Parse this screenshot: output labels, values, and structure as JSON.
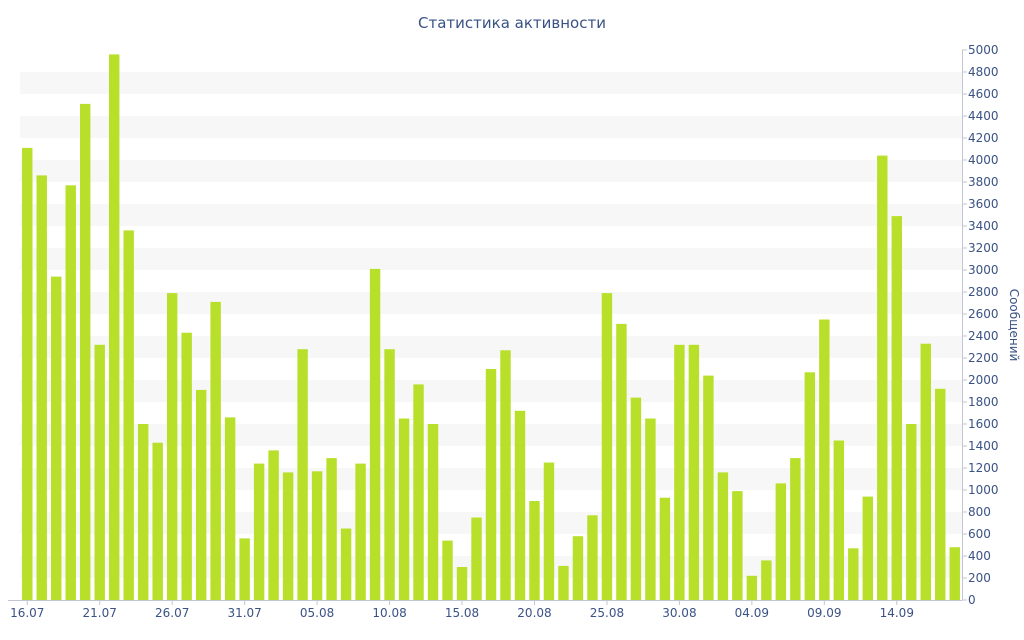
{
  "chart_data": {
    "type": "bar",
    "title": "Статистика активности",
    "ylabel": "Сообщений",
    "xlabel": "",
    "ylim": [
      0,
      5000
    ],
    "y_tick_step": 200,
    "y_axis_side": "right",
    "grid": "alternating horizontal bands",
    "bar_color": "#b8e02a",
    "x_tick_labels": [
      "16.07",
      "21.07",
      "26.07",
      "31.07",
      "05.08",
      "10.08",
      "15.08",
      "20.08",
      "25.08",
      "30.08",
      "04.09",
      "09.09",
      "14.09"
    ],
    "categories": [
      "16.07",
      "17.07",
      "18.07",
      "19.07",
      "20.07",
      "21.07",
      "22.07",
      "23.07",
      "24.07",
      "25.07",
      "26.07",
      "27.07",
      "28.07",
      "29.07",
      "30.07",
      "31.07",
      "01.08",
      "02.08",
      "03.08",
      "04.08",
      "05.08",
      "06.08",
      "07.08",
      "08.08",
      "09.08",
      "10.08",
      "11.08",
      "12.08",
      "13.08",
      "14.08",
      "15.08",
      "16.08",
      "17.08",
      "18.08",
      "19.08",
      "20.08",
      "21.08",
      "22.08",
      "23.08",
      "24.08",
      "25.08",
      "26.08",
      "27.08",
      "28.08",
      "29.08",
      "30.08",
      "31.08",
      "01.09",
      "02.09",
      "03.09",
      "04.09",
      "05.09",
      "06.09",
      "07.09",
      "08.09",
      "09.09",
      "10.09",
      "11.09",
      "12.09",
      "13.09",
      "14.09",
      "15.09",
      "16.09",
      "17.09",
      "18.09"
    ],
    "values": [
      4110,
      3860,
      2940,
      3770,
      4510,
      2320,
      4960,
      3360,
      1600,
      1430,
      2790,
      2430,
      1910,
      2710,
      1660,
      560,
      1240,
      1360,
      1160,
      2280,
      1170,
      1290,
      650,
      1240,
      3010,
      2280,
      1650,
      1960,
      1600,
      540,
      300,
      750,
      2100,
      2270,
      1720,
      900,
      1250,
      310,
      580,
      770,
      2790,
      2510,
      1840,
      1650,
      930,
      2320,
      2320,
      2040,
      1160,
      990,
      220,
      360,
      1060,
      1290,
      2070,
      2550,
      1450,
      470,
      940,
      4040,
      3490,
      1600,
      2330,
      1920,
      480
    ]
  },
  "colors": {
    "title": "#3a5285",
    "axis_text": "#3a5285",
    "band": "#f7f7f7",
    "bar": "#b8e02a",
    "axis_line": "#c0c6d2"
  }
}
